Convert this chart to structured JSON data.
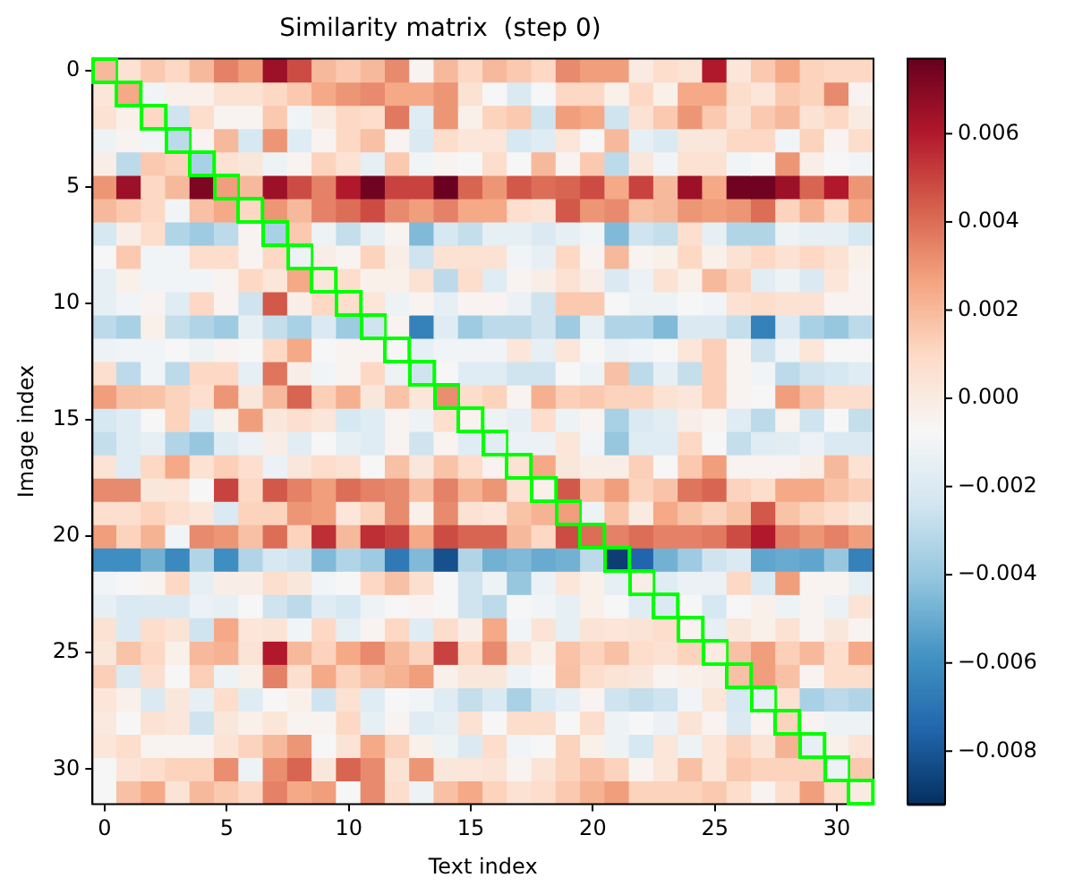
{
  "chart_data": {
    "type": "heatmap",
    "title": "Similarity matrix  (step 0)",
    "xlabel": "Text index",
    "ylabel": "Image index",
    "categories": [
      "0",
      null,
      null,
      null,
      null,
      "5",
      null,
      null,
      null,
      null,
      "10",
      null,
      null,
      null,
      null,
      "15",
      null,
      null,
      null,
      null,
      "20",
      null,
      null,
      null,
      null,
      "25",
      null,
      null,
      null,
      null,
      "30",
      null
    ],
    "y_categories": [
      "0",
      null,
      null,
      null,
      null,
      "5",
      null,
      null,
      null,
      null,
      "10",
      null,
      null,
      null,
      null,
      "15",
      null,
      null,
      null,
      null,
      "20",
      null,
      null,
      null,
      null,
      "25",
      null,
      null,
      null,
      null,
      "30",
      null
    ],
    "cells": [
      [
        0.002,
        0.0005,
        0.0015,
        0.001,
        0.002,
        0.0035,
        0.0028,
        0.0065,
        0.0048,
        0.002,
        0.0015,
        0.002,
        0.0033,
        -0.0005,
        0.002,
        0.001,
        0.002,
        0.0015,
        0.001,
        0.0033,
        0.0028,
        0.0028,
        0,
        0.0008,
        0.0004,
        0.006,
        0.0003,
        0.0015,
        0.0025,
        0.0012,
        0.001,
        0.001
      ],
      [
        0.0003,
        0.0025,
        -0.001,
        -0.0003,
        -0.0003,
        0.0005,
        0.0005,
        0.001,
        0.0015,
        0.0025,
        0.003,
        0.0033,
        0.0025,
        0.0025,
        0.003,
        0.0005,
        -0.0008,
        -0.002,
        -0.0008,
        0.001,
        0.001,
        -0.0003,
        0.001,
        -0.0003,
        0.0025,
        0.0025,
        0.0008,
        0.0003,
        0.0015,
        0.0012,
        0.0033,
        -0.0005
      ],
      [
        0.0005,
        -0.0003,
        0.001,
        -0.0025,
        0.0008,
        -0.0005,
        -0.0005,
        0.0015,
        -0.001,
        0,
        0.001,
        0.0008,
        0.0037,
        -0.0018,
        0.003,
        -0.0003,
        0.0012,
        0.0015,
        -0.0025,
        0.0028,
        0.0025,
        -0.0025,
        0.0005,
        0.0015,
        0.003,
        0.0015,
        0.0005,
        0.0015,
        0.002,
        0.0005,
        0.001,
        0
      ],
      [
        -0.0012,
        -0.0005,
        -0.001,
        -0.003,
        -0.0005,
        0.002,
        -0.0022,
        0.003,
        -0.0018,
        -0.0005,
        0.001,
        0.0018,
        -0.0005,
        -0.002,
        0.0008,
        0.0003,
        0.0003,
        -0.0022,
        -0.0018,
        0.0003,
        -0.0008,
        0.002,
        -0.0015,
        -0.002,
        0.0002,
        0.0002,
        0.001,
        0.001,
        -0.001,
        0.0012,
        -0.0005,
        0.0008
      ],
      [
        -0.0002,
        -0.003,
        0.0015,
        0.0012,
        -0.0035,
        0.0005,
        0.0002,
        -0.0012,
        -0.0005,
        0.0012,
        0.0005,
        -0.0015,
        0.0015,
        -0.001,
        -0.0005,
        -0.0008,
        0.0008,
        -0.0008,
        0.002,
        -0.0005,
        0.0015,
        -0.003,
        0.0002,
        -0.001,
        0.0005,
        0.0005,
        -0.001,
        -0.0008,
        0.003,
        -0.0002,
        -0.0008,
        -0.001
      ],
      [
        0.003,
        0.0065,
        0.001,
        0.002,
        0.0072,
        0.0028,
        0.002,
        0.0065,
        0.0048,
        0.0035,
        0.006,
        0.0075,
        0.005,
        0.005,
        0.0076,
        0.0042,
        0.003,
        0.0045,
        0.004,
        0.0042,
        0.0048,
        0.0025,
        0.005,
        0.002,
        0.0065,
        0.0025,
        0.0075,
        0.0075,
        0.0065,
        0.0042,
        0.006,
        0.003
      ],
      [
        0.002,
        0.0015,
        0.001,
        -0.001,
        0.0018,
        0.0025,
        0.001,
        0.003,
        0.002,
        0.0035,
        0.004,
        0.0048,
        0.0033,
        0.0028,
        0.0035,
        0.0025,
        0.0025,
        0.0007,
        0.0004,
        0.0045,
        0.003,
        0.0033,
        0.0018,
        0.002,
        0.003,
        0.0028,
        0.003,
        0.004,
        0.0012,
        0.0022,
        0.001,
        0.0025
      ],
      [
        -0.0022,
        -0.0002,
        0.0008,
        -0.0033,
        -0.0038,
        -0.003,
        -0.0005,
        -0.0035,
        0.0015,
        -0.0012,
        -0.0028,
        -0.0015,
        -0.0005,
        -0.0045,
        -0.0022,
        -0.0028,
        -0.0015,
        -0.0015,
        -0.002,
        -0.0015,
        -0.001,
        -0.0045,
        -0.0025,
        -0.0028,
        0.0007,
        -0.0015,
        -0.0033,
        -0.0033,
        -0.0012,
        -0.0015,
        -0.0015,
        -0.0022
      ],
      [
        -0.0008,
        0.0015,
        -0.001,
        -0.001,
        0.0008,
        0.0008,
        -0.0005,
        0.001,
        -0.0012,
        -0.0002,
        -0.0005,
        0.0012,
        -0.0002,
        -0.0025,
        0.0005,
        0.0005,
        0.0005,
        -0.001,
        -0.0015,
        0.001,
        -0.0005,
        0.002,
        -0.0005,
        -0.0003,
        0.001,
        -0.0003,
        0.0005,
        0.001,
        0.0005,
        0.001,
        0.0005,
        -0.0003
      ],
      [
        -0.0015,
        -0.0003,
        -0.001,
        -0.001,
        -0.001,
        -0.0005,
        0.001,
        0.0003,
        0.0025,
        0.0002,
        0.0008,
        -0.0003,
        -0.0003,
        0.0005,
        -0.003,
        0.0008,
        -0.0018,
        -0.0005,
        -0.0002,
        0.0005,
        -0.0002,
        -0.002,
        -0.0013,
        0.0005,
        -0.0003,
        0.002,
        0.0012,
        -0.0017,
        -0.0012,
        -0.002,
        0.0003,
        -0.0005
      ],
      [
        -0.0015,
        -0.001,
        -0.0005,
        -0.0018,
        0.001,
        -0.0005,
        -0.0025,
        0.0045,
        -0.0002,
        0.001,
        0.0008,
        0.0003,
        -0.0012,
        -0.0005,
        -0.0015,
        -0.0005,
        -0.0005,
        -0.0013,
        -0.0025,
        0.0015,
        0.0015,
        -0.0008,
        -0.0012,
        -0.0012,
        -0.0008,
        -0.001,
        0.0005,
        0.0008,
        0.0005,
        0.0005,
        -0.0005,
        -0.0005
      ],
      [
        -0.003,
        -0.0035,
        -0.0003,
        -0.0028,
        -0.0033,
        -0.0038,
        -0.0015,
        -0.0028,
        -0.0035,
        -0.002,
        -0.0038,
        -0.0025,
        -0.0005,
        -0.0065,
        -0.0018,
        -0.0038,
        -0.003,
        -0.003,
        -0.0025,
        -0.0038,
        -0.0015,
        -0.0033,
        -0.0033,
        -0.0045,
        -0.002,
        -0.002,
        -0.0028,
        -0.0065,
        -0.002,
        -0.0035,
        -0.004,
        -0.003
      ],
      [
        -0.0012,
        -0.001,
        -0.001,
        -0.0008,
        -0.0012,
        -0.0005,
        -0.0008,
        0.001,
        0.0025,
        -0.0008,
        -0.0005,
        -0.0005,
        -0.0008,
        -0.0015,
        -0.001,
        -0.001,
        -0.001,
        0.0003,
        -0.0015,
        0.0003,
        -0.0008,
        -0.0013,
        -0.001,
        -0.0008,
        0.0003,
        0.0013,
        -0.0005,
        -0.0025,
        -0.001,
        0.0003,
        -0.0008,
        -0.0008
      ],
      [
        0.0007,
        -0.003,
        -0.001,
        -0.003,
        0.001,
        0.001,
        -0.0015,
        0.0038,
        -0.0002,
        -0.001,
        -0.0005,
        0.001,
        -0.0012,
        -0.0025,
        -0.0008,
        -0.0018,
        -0.0018,
        -0.0025,
        -0.0025,
        -0.0008,
        -0.0012,
        0.0018,
        -0.003,
        -0.0015,
        -0.0028,
        0.0013,
        -0.0005,
        -0.001,
        -0.003,
        -0.0025,
        -0.0022,
        -0.0018
      ],
      [
        0.0028,
        0.0018,
        0.0017,
        0.0012,
        0.0007,
        0.003,
        0.0002,
        0.002,
        0.0042,
        0.0013,
        0.0023,
        0.0002,
        0.0017,
        0.0003,
        0.0032,
        0.0008,
        0.0012,
        -0.0005,
        0.0023,
        0.0013,
        0.0015,
        0.0012,
        0.0012,
        0.0005,
        0.0003,
        0.0013,
        -0.0005,
        -0.0008,
        0.0028,
        0.0018,
        0.0008,
        0.0008
      ],
      [
        -0.0022,
        -0.0018,
        -0.0008,
        0.0012,
        -0.0018,
        -0.0003,
        0.0028,
        0.0002,
        0.0007,
        0.0003,
        -0.0022,
        -0.0018,
        -0.0005,
        -0.0012,
        0.0007,
        -0.0005,
        -0.0012,
        -0.0015,
        0.0008,
        -0.0012,
        -0.0005,
        -0.0035,
        -0.002,
        -0.0017,
        -0.0002,
        -0.0005,
        -0.0018,
        -0.003,
        -0.0005,
        -0.0025,
        -0.0008,
        -0.0028
      ],
      [
        -0.0028,
        -0.0018,
        -0.0015,
        -0.0033,
        -0.004,
        -0.0018,
        -0.0013,
        -0.0002,
        -0.0017,
        -0.0007,
        -0.0015,
        -0.0018,
        -0.0005,
        -0.0025,
        -0.0005,
        -0.0018,
        -0.0017,
        -0.0013,
        -0.0013,
        0.0003,
        -0.001,
        -0.004,
        -0.0018,
        -0.0018,
        0.001,
        -0.0008,
        -0.0028,
        -0.0018,
        -0.0017,
        -0.0013,
        -0.002,
        -0.002
      ],
      [
        0.0004,
        -0.0018,
        0.001,
        0.0025,
        0.0005,
        0.0013,
        0.0007,
        -0.0013,
        0.0002,
        0.0008,
        0.0005,
        -0.0007,
        0.0018,
        0.0002,
        0.0017,
        0.0008,
        -0.0005,
        0.0005,
        0.0025,
        0.0002,
        -0.0002,
        -0.0002,
        0.0013,
        -0.0008,
        0.0015,
        0.0028,
        -0.0005,
        -0.0005,
        -0.0005,
        -0.0002,
        0.002,
        0.0005
      ],
      [
        0.0033,
        0.0033,
        0.0002,
        0.0003,
        -0.0008,
        0.005,
        0.001,
        0.0045,
        0.0035,
        0.0028,
        0.004,
        0.0035,
        0.0033,
        0.0018,
        0.0035,
        0.0022,
        0.003,
        0.0005,
        -0.0003,
        0.0045,
        0.0017,
        0.0028,
        0.0012,
        0.0017,
        0.0038,
        0.0042,
        0.0012,
        0.0008,
        0.0025,
        0.0025,
        0.0017,
        0.0013
      ],
      [
        0.0007,
        0.0007,
        0.0012,
        0.0007,
        0.0003,
        -0.002,
        0.0012,
        0.0012,
        0.003,
        0.0028,
        0.0003,
        0.0012,
        0.0033,
        -0.0003,
        0.0033,
        0.0005,
        0.0003,
        0.0017,
        0.0022,
        0.0028,
        -0.0012,
        0.0017,
        0,
        0.0025,
        0.0017,
        0.0012,
        0.0017,
        0.0045,
        0.0017,
        0.0012,
        0.0008,
        0.0002
      ],
      [
        0.0028,
        0.0012,
        0.0022,
        -0.001,
        0.0033,
        0.003,
        0.0018,
        0.004,
        0.0012,
        0.0055,
        0.002,
        0.0055,
        0.005,
        0.0025,
        0.0048,
        0.0042,
        0.0042,
        0.002,
        0.001,
        0.0048,
        0.004,
        0.0035,
        0.004,
        0.0035,
        0.0035,
        0.0037,
        0.0048,
        0.006,
        0.0035,
        0.003,
        0.0035,
        0.0028
      ],
      [
        -0.006,
        -0.006,
        -0.0048,
        -0.0062,
        -0.0033,
        -0.006,
        -0.0033,
        -0.0022,
        -0.0025,
        -0.0045,
        -0.0033,
        -0.0038,
        -0.0068,
        -0.0045,
        -0.0082,
        -0.0033,
        -0.0048,
        -0.0045,
        -0.005,
        -0.0048,
        -0.003,
        -0.0088,
        -0.0075,
        -0.0048,
        -0.0038,
        -0.0025,
        -0.002,
        -0.0052,
        -0.005,
        -0.0052,
        -0.004,
        -0.0065
      ],
      [
        -0.001,
        -0.0008,
        -0.0005,
        0.001,
        -0.0015,
        -0.0002,
        -0.0002,
        0.0007,
        0.0002,
        -0.001,
        -0.0008,
        0.001,
        0.0018,
        0.0007,
        -0.0008,
        -0.0025,
        -0.0012,
        -0.004,
        -0.0013,
        0.0003,
        -0.0003,
        -0.0015,
        -0.0002,
        -0.0018,
        -0.0013,
        -0.0013,
        0.001,
        -0.002,
        0.0028,
        -0.0005,
        -0.0005,
        -0.0015
      ],
      [
        -0.0015,
        -0.002,
        -0.002,
        -0.002,
        -0.0013,
        -0.0015,
        -0.0008,
        -0.0025,
        -0.003,
        -0.0018,
        -0.0022,
        -0.0012,
        -0.0008,
        -0.0005,
        -0.0008,
        -0.0025,
        -0.003,
        -0.0008,
        -0.001,
        -0.0015,
        -0.0003,
        -0.0008,
        -0.0018,
        -0.002,
        -0.0008,
        -0.0022,
        -0.0008,
        -0.0003,
        -0.0012,
        -0.0005,
        -0.0013,
        0.0004
      ],
      [
        0.0005,
        -0.002,
        0.0008,
        0.0004,
        -0.0025,
        0.0025,
        0.0003,
        0.0004,
        -0.001,
        0.001,
        -0.0015,
        -0.0005,
        0.001,
        -0.0018,
        0.0008,
        -0.0002,
        0.0025,
        -0.001,
        0.0004,
        -0.0015,
        0.0004,
        0.0003,
        0.0004,
        0.0008,
        -0.0005,
        -0.0015,
        0.0002,
        -0.0003,
        0.0005,
        -0.0005,
        0.0002,
        -0.0005
      ],
      [
        0.0002,
        0.0017,
        0.001,
        -0.0003,
        0.002,
        0.0022,
        0.0004,
        0.006,
        0.002,
        0.0012,
        0.0025,
        0.0033,
        0.002,
        0.0012,
        0.005,
        0.001,
        0.0033,
        0.0005,
        -0.0003,
        0.0017,
        0.0012,
        0.0018,
        0.0008,
        0.0005,
        0.0012,
        0,
        0.0018,
        0.0028,
        0.0013,
        0.002,
        0.0008,
        0.0025
      ],
      [
        0.0013,
        -0.002,
        0.0007,
        -0.0008,
        0.0013,
        -0.0012,
        -0.0003,
        0.0035,
        0.0007,
        0.0025,
        0.0012,
        0.0018,
        0.0022,
        0.0028,
        -0.0003,
        0.0002,
        0.0002,
        -0.0012,
        -0.0008,
        0.0018,
        0.0008,
        0.0004,
        0.0002,
        -0.0005,
        -0.0003,
        -0.0002,
        0.0018,
        0.0028,
        0.0018,
        -0.0005,
        0.0008,
        0.0008
      ],
      [
        0.0003,
        -0.0003,
        -0.002,
        0.0002,
        -0.0015,
        0.0008,
        -0.0018,
        -0.0008,
        -0.0003,
        -0.0025,
        0.0005,
        -0.0018,
        -0.0008,
        -0.001,
        -0.0018,
        -0.0028,
        -0.002,
        -0.0035,
        -0.002,
        -0.0015,
        -0.0005,
        -0.0025,
        -0.0028,
        -0.0025,
        -0.001,
        0.0003,
        -0.0022,
        -0.0015,
        0.0005,
        -0.0035,
        -0.003,
        -0.0033
      ],
      [
        0.0001,
        -0.0008,
        0.0005,
        0.0003,
        -0.0025,
        0.0002,
        -0.0003,
        0.0003,
        -0.0005,
        -0.0005,
        0.001,
        -0.0015,
        -0.0005,
        -0.0018,
        -0.0015,
        0.0005,
        -0.0008,
        0.0008,
        0.0008,
        -0.0008,
        0.0008,
        -0.0012,
        -0.0008,
        -0.0013,
        0.0004,
        -0.0005,
        -0.002,
        -0.0005,
        0.0012,
        -0.0005,
        -0.0012,
        -0.0012
      ],
      [
        0.0003,
        0.0008,
        -0.0005,
        -0.0005,
        -0.0005,
        0.0004,
        0.0012,
        0.002,
        0.003,
        -0.0008,
        0.0004,
        0.0025,
        0.0012,
        -0.0003,
        -0.0012,
        -0.002,
        0.0008,
        -0.001,
        -0.0008,
        0.0012,
        -0.0003,
        -0.0012,
        -0.0022,
        0.0003,
        -0.0012,
        0.0003,
        0.0012,
        0.0004,
        0.0022,
        -0.0015,
        -0.0003,
        0.0004
      ],
      [
        -0.0008,
        0.0004,
        0.0008,
        0.0012,
        0.0012,
        0.0032,
        -0.0012,
        0.0032,
        0.0042,
        0.0002,
        0.0042,
        0.0033,
        0.0005,
        0.003,
        0.0002,
        0.0003,
        0.0004,
        -0.0005,
        0.0004,
        0.0012,
        0.0018,
        0.0012,
        -0.0005,
        0.0003,
        0.0018,
        0.0003,
        0.0015,
        0.0012,
        0.0012,
        0.0012,
        -0.0012,
        0.0015
      ],
      [
        -0.0008,
        0.0018,
        0.0025,
        0.0004,
        0.002,
        0.0015,
        0.001,
        0.0035,
        0.0025,
        0.0028,
        -0.0008,
        0.0033,
        0.0008,
        -0.0012,
        0.0018,
        0.0025,
        0.0012,
        0.0005,
        0.0008,
        0.0015,
        0.0022,
        0.0028,
        0.0012,
        0.0012,
        0.0012,
        0.0015,
        0.0008,
        -0.0005,
        0.0008,
        0.0028,
        0.0008,
        0
      ]
    ],
    "clim": [
      -0.0092,
      0.0077
    ],
    "cticks": [
      {
        "value": -0.008,
        "label": "−0.008"
      },
      {
        "value": -0.006,
        "label": "−0.006"
      },
      {
        "value": -0.004,
        "label": "−0.004"
      },
      {
        "value": -0.002,
        "label": "−0.002"
      },
      {
        "value": 0,
        "label": "0.000"
      },
      {
        "value": 0.002,
        "label": "0.002"
      },
      {
        "value": 0.004,
        "label": "0.004"
      },
      {
        "value": 0.006,
        "label": "0.006"
      }
    ]
  }
}
